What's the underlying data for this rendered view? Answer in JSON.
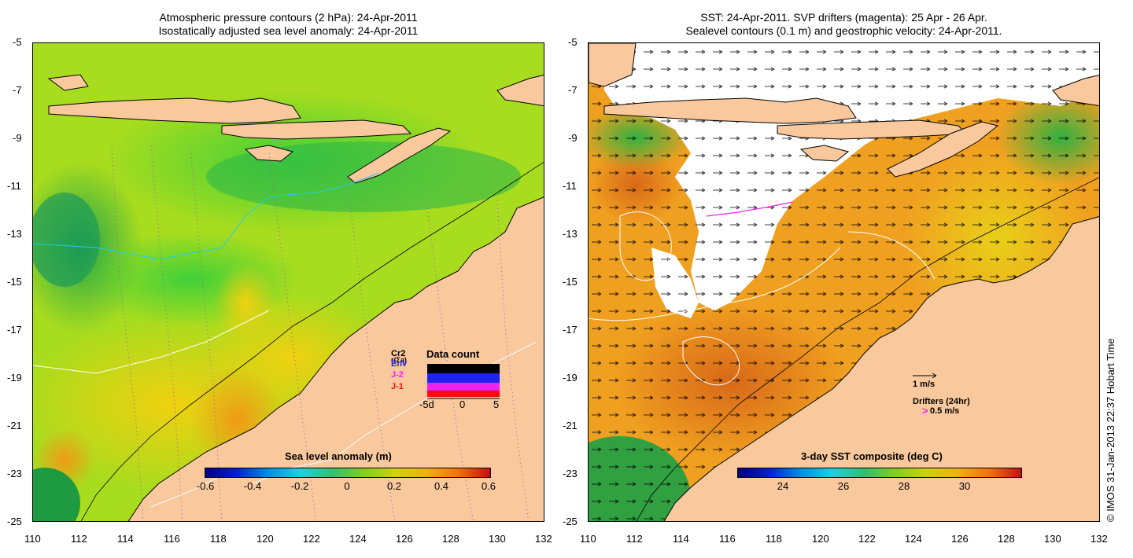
{
  "left_map": {
    "title_line1": "Atmospheric pressure contours (2 hPa): 24-Apr-2011",
    "title_line2": "Isostatically adjusted sea level anomaly: 24-Apr-2011",
    "colorbar_label": "Sea level anomaly (m)",
    "colorbar_ticks": [
      "-0.6",
      "-0.4",
      "-0.2",
      "0",
      "0.2",
      "0.4",
      "0.6"
    ],
    "colorbar_range": [
      -0.6,
      0.6
    ],
    "data_count": {
      "title": "Data count",
      "satellites": [
        {
          "name": "Cr2",
          "color": "#000000"
        },
        {
          "name": "Env",
          "color": "#2222ee"
        },
        {
          "name": "J-2",
          "color": "#ee22ee"
        },
        {
          "name": "J-1",
          "color": "#ee1111"
        }
      ],
      "axis_labels": [
        "-5d",
        "0",
        "5"
      ],
      "overlap_text": "r(Σa)"
    }
  },
  "right_map": {
    "title_line1": "SST: 24-Apr-2011. SVP drifters (magenta): 25 Apr - 26 Apr.",
    "title_line2": "Sealevel contours (0.1 m) and geostrophic velocity: 24-Apr-2011.",
    "colorbar_label": "3-day SST composite (deg C)",
    "colorbar_ticks": [
      "24",
      "26",
      "28",
      "30"
    ],
    "colorbar_range": [
      22.2,
      31.6
    ],
    "velocity_scale_label": "1 m/s",
    "drifter_label": "Drifters (24hr)",
    "drifter_scale_label": "0.5 m/s",
    "drifter_color": "#ee22ee"
  },
  "axes": {
    "x_ticks": [
      "110",
      "112",
      "114",
      "116",
      "118",
      "120",
      "122",
      "124",
      "126",
      "128",
      "130",
      "132"
    ],
    "y_ticks": [
      "-5",
      "-7",
      "-9",
      "-11",
      "-13",
      "-15",
      "-17",
      "-19",
      "-21",
      "-23",
      "-25"
    ],
    "lon_range": [
      110,
      132
    ],
    "lat_range": [
      -25,
      -5
    ]
  },
  "credit": "© IMOS 31-Jan-2013 22:37 Hobart Time",
  "colors": {
    "land": "#f9c89c",
    "ocean_sla": "#a8dc1e",
    "ocean_sst": "#f0a020",
    "sst_cloud": "#ffffff"
  }
}
